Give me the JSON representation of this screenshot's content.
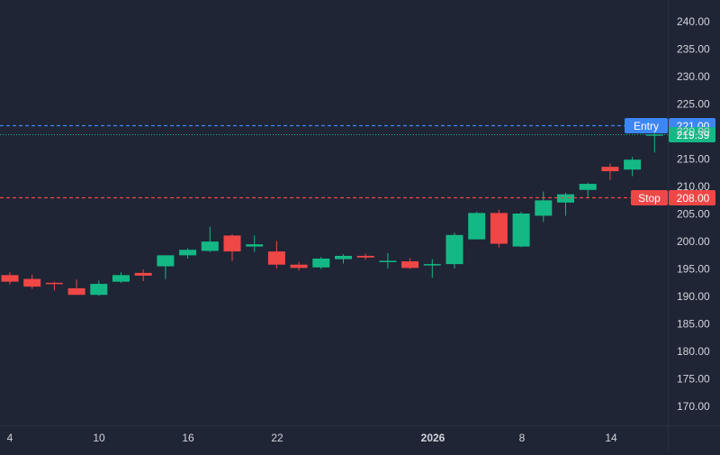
{
  "colors": {
    "background": "#1f2535",
    "text": "#d1d4dc",
    "up": "#14b885",
    "down": "#ef4646",
    "entry": "#3d87f5",
    "stop": "#ef4646",
    "current": "#14b885"
  },
  "chart_data": {
    "type": "candlestick",
    "title": "",
    "ylim": [
      166,
      244
    ],
    "y_ticks": [
      "240.00",
      "235.00",
      "230.00",
      "225.00",
      "220.00",
      "215.00",
      "210.00",
      "205.00",
      "200.00",
      "195.00",
      "190.00",
      "185.00",
      "180.00",
      "175.00",
      "170.00"
    ],
    "x_ticks": [
      {
        "label": "4",
        "bold": false
      },
      {
        "label": "10",
        "bold": false
      },
      {
        "label": "16",
        "bold": false
      },
      {
        "label": "22",
        "bold": false
      },
      {
        "label": "2026",
        "bold": true
      },
      {
        "label": "8",
        "bold": false
      },
      {
        "label": "14",
        "bold": false
      }
    ],
    "candles": [
      {
        "o": 193.8,
        "h": 194.3,
        "l": 192.1,
        "c": 192.6
      },
      {
        "o": 193.1,
        "h": 193.9,
        "l": 191.3,
        "c": 191.7
      },
      {
        "o": 192.4,
        "h": 192.6,
        "l": 191.0,
        "c": 192.2
      },
      {
        "o": 191.4,
        "h": 193.0,
        "l": 190.3,
        "c": 190.2
      },
      {
        "o": 190.2,
        "h": 192.8,
        "l": 190.0,
        "c": 192.2
      },
      {
        "o": 192.6,
        "h": 194.3,
        "l": 192.4,
        "c": 193.8
      },
      {
        "o": 194.2,
        "h": 194.8,
        "l": 192.7,
        "c": 193.7
      },
      {
        "o": 195.4,
        "h": 197.4,
        "l": 193.1,
        "c": 197.4
      },
      {
        "o": 197.4,
        "h": 198.7,
        "l": 196.8,
        "c": 198.4
      },
      {
        "o": 198.2,
        "h": 202.6,
        "l": 198.0,
        "c": 199.9
      },
      {
        "o": 201.0,
        "h": 201.2,
        "l": 196.4,
        "c": 198.1
      },
      {
        "o": 199.0,
        "h": 201.0,
        "l": 198.0,
        "c": 199.4
      },
      {
        "o": 198.1,
        "h": 200.0,
        "l": 195.0,
        "c": 195.7
      },
      {
        "o": 195.7,
        "h": 196.2,
        "l": 194.6,
        "c": 195.1
      },
      {
        "o": 195.2,
        "h": 197.1,
        "l": 194.9,
        "c": 196.8
      },
      {
        "o": 196.7,
        "h": 197.6,
        "l": 195.9,
        "c": 197.3
      },
      {
        "o": 197.3,
        "h": 197.7,
        "l": 196.6,
        "c": 197.0
      },
      {
        "o": 196.2,
        "h": 197.8,
        "l": 195.0,
        "c": 196.4
      },
      {
        "o": 196.3,
        "h": 196.9,
        "l": 194.9,
        "c": 195.1
      },
      {
        "o": 195.6,
        "h": 196.7,
        "l": 193.3,
        "c": 195.8
      },
      {
        "o": 195.8,
        "h": 201.5,
        "l": 195.0,
        "c": 201.1
      },
      {
        "o": 200.3,
        "h": 205.3,
        "l": 200.3,
        "c": 205.1
      },
      {
        "o": 205.1,
        "h": 205.7,
        "l": 198.8,
        "c": 199.5
      },
      {
        "o": 199.0,
        "h": 205.3,
        "l": 198.9,
        "c": 205.0
      },
      {
        "o": 204.6,
        "h": 209.0,
        "l": 203.5,
        "c": 207.4
      },
      {
        "o": 207.0,
        "h": 208.8,
        "l": 204.6,
        "c": 208.5
      },
      {
        "o": 209.3,
        "h": 210.6,
        "l": 208.0,
        "c": 210.4
      },
      {
        "o": 213.5,
        "h": 214.1,
        "l": 211.1,
        "c": 212.7
      },
      {
        "o": 213.0,
        "h": 215.3,
        "l": 211.8,
        "c": 214.8
      },
      {
        "o": 219.4,
        "h": 220.6,
        "l": 216.1,
        "c": 219.4
      }
    ],
    "levels": [
      {
        "name": "Entry",
        "value": 221.0,
        "label": "221.00",
        "color": "#3d87f5",
        "style": "dashed"
      },
      {
        "name": "",
        "value": 219.39,
        "label": "219.39",
        "color": "#14b885",
        "style": "dotted"
      },
      {
        "name": "Stop",
        "value": 208.0,
        "label": "208.00",
        "color": "#ef4646",
        "style": "dashed"
      }
    ]
  }
}
